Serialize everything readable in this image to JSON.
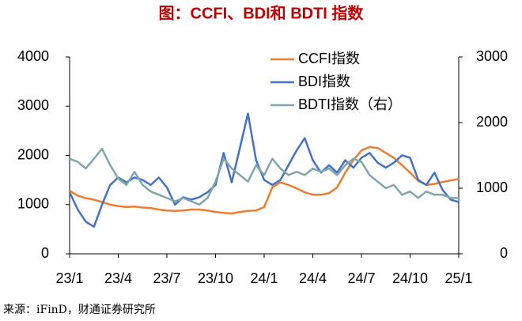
{
  "chart_data": {
    "type": "line",
    "title": "图：CCFI、BDI和 BDTI 指数",
    "source": "来源：iFinD，财通证券研究所",
    "x": [
      0,
      0.5,
      1,
      1.5,
      2,
      2.5,
      3,
      3.5,
      4,
      4.5,
      5,
      5.5,
      6,
      6.5,
      7,
      7.5,
      8,
      8.5,
      9,
      9.5,
      10,
      10.5,
      11,
      11.5,
      12,
      12.5,
      13,
      13.5,
      14,
      14.5,
      15,
      15.5,
      16,
      16.5,
      17,
      17.5,
      18,
      18.5,
      19,
      19.5,
      20,
      20.5,
      21,
      21.5,
      22,
      22.5,
      23,
      23.5,
      24
    ],
    "xlim": [
      0,
      24
    ],
    "xticks": [
      {
        "value": 0,
        "label": "23/1"
      },
      {
        "value": 3,
        "label": "23/4"
      },
      {
        "value": 6,
        "label": "23/7"
      },
      {
        "value": 9,
        "label": "23/10"
      },
      {
        "value": 12,
        "label": "24/1"
      },
      {
        "value": 15,
        "label": "24/4"
      },
      {
        "value": 18,
        "label": "24/7"
      },
      {
        "value": 21,
        "label": "24/10"
      },
      {
        "value": 24,
        "label": "25/1"
      }
    ],
    "ylim": [
      0,
      4000
    ],
    "yticks": [
      0,
      1000,
      2000,
      3000,
      4000
    ],
    "y2lim": [
      0,
      3000
    ],
    "y2ticks": [
      0,
      1000,
      2000,
      3000
    ],
    "grid": false,
    "series": [
      {
        "name": "CCFI指数",
        "color": "#ed7d31",
        "values": [
          1280,
          1180,
          1130,
          1100,
          1050,
          1000,
          970,
          950,
          960,
          940,
          930,
          900,
          880,
          870,
          880,
          900,
          900,
          880,
          850,
          830,
          820,
          850,
          870,
          880,
          950,
          1350,
          1450,
          1400,
          1330,
          1250,
          1200,
          1200,
          1230,
          1350,
          1650,
          1900,
          2100,
          2170,
          2150,
          2050,
          1950,
          1800,
          1650,
          1480,
          1400,
          1420,
          1460,
          1490,
          1520
        ]
      },
      {
        "name": "BDI指数",
        "color": "#4472c4",
        "values": [
          1250,
          900,
          650,
          550,
          1000,
          1400,
          1550,
          1450,
          1550,
          1500,
          1400,
          1550,
          1350,
          1000,
          1150,
          1100,
          1150,
          1250,
          1400,
          2050,
          1450,
          2150,
          2850,
          1900,
          1500,
          1400,
          1500,
          1800,
          2100,
          2350,
          1900,
          1650,
          1800,
          1650,
          1900,
          1750,
          1950,
          2050,
          1850,
          1750,
          1850,
          2000,
          1950,
          1500,
          1400,
          1650,
          1300,
          1100,
          1050
        ]
      },
      {
        "name": "BDTI指数（右）",
        "color": "#7fa7aa",
        "axis": "y2",
        "values": [
          1450,
          1400,
          1300,
          1450,
          1600,
          1350,
          1150,
          1050,
          1250,
          1050,
          950,
          900,
          850,
          800,
          850,
          800,
          750,
          850,
          1100,
          1450,
          1300,
          1200,
          1100,
          1350,
          1200,
          1450,
          1300,
          1200,
          1250,
          1200,
          1300,
          1250,
          1300,
          1200,
          1350,
          1450,
          1400,
          1200,
          1100,
          1000,
          1050,
          900,
          950,
          850,
          950,
          900,
          900,
          850,
          850
        ]
      }
    ]
  }
}
